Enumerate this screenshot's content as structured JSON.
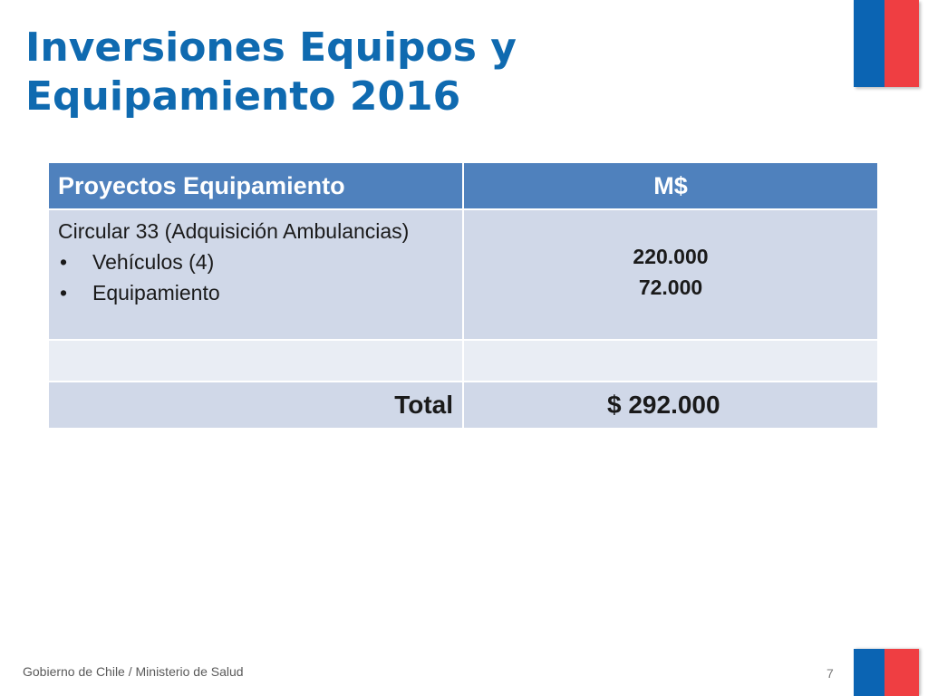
{
  "slide": {
    "title_line1": "Inversiones Equipos y",
    "title_line2": "Equipamiento 2016"
  },
  "table": {
    "headers": [
      "Proyectos Equipamiento",
      "M$"
    ],
    "rows": [
      {
        "description": "Circular 33 (Adquisición Ambulancias)",
        "bullets": [
          "Vehículos (4)",
          "Equipamiento"
        ],
        "values": [
          "220.000",
          "72.000"
        ]
      },
      {
        "description": "",
        "bullets": [],
        "values": []
      }
    ],
    "total_label": "Total",
    "total_value": "$ 292.000"
  },
  "footer": {
    "text": "Gobierno de Chile / Ministerio de Salud",
    "page_number": "7"
  },
  "colors": {
    "title": "#0f6ab0",
    "header_bg": "#4f81bd",
    "row_bg": "#d0d8e8",
    "row_alt_bg": "#e9edf4",
    "flag_blue": "#0b64b3",
    "flag_red": "#ef3e42"
  }
}
